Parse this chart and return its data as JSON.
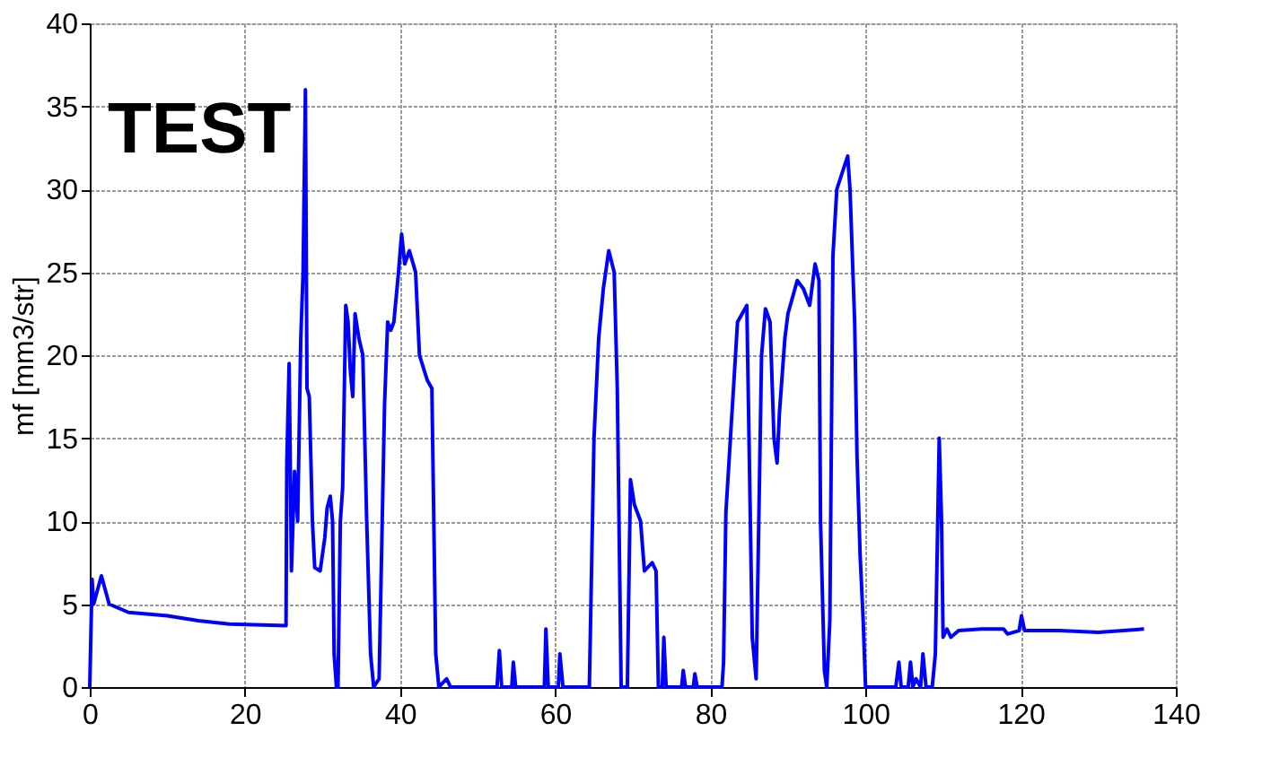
{
  "chart_data": {
    "type": "line",
    "ylabel": "mf [mm3/str]",
    "annotations": [
      "TEST"
    ],
    "xlim": [
      0,
      140
    ],
    "xticks": [
      0,
      20,
      40,
      60,
      80,
      100,
      120,
      140
    ],
    "ylim": [
      0,
      40
    ],
    "yticks": [
      0,
      5,
      10,
      15,
      20,
      25,
      30,
      35,
      40
    ],
    "grid": true,
    "line_style": "solid",
    "marker": "none",
    "series": [
      {
        "color": "#0000ff",
        "x": [
          0,
          0.3,
          0.5,
          1.5,
          2.5,
          5,
          10,
          14,
          18,
          25.3,
          25.4,
          25.7,
          26.0,
          26.4,
          26.8,
          27.2,
          27.5,
          27.8,
          28.0,
          28.3,
          28.7,
          29.0,
          29.7,
          30.3,
          30.6,
          31.0,
          31.3,
          31.5,
          31.8,
          32.0,
          32.3,
          32.6,
          33.0,
          33.3,
          33.6,
          33.9,
          34.2,
          34.7,
          35.2,
          35.7,
          36.2,
          36.6,
          37.3,
          37.7,
          38.0,
          38.4,
          38.8,
          39.2,
          39.8,
          40.2,
          40.6,
          41.2,
          42.0,
          42.5,
          43.5,
          44.1,
          44.6,
          45.0,
          46.0,
          46.5,
          52.5,
          52.8,
          53.1,
          54.4,
          54.6,
          54.9,
          58.6,
          58.8,
          59.1,
          60.4,
          60.6,
          61.0,
          64.4,
          64.6,
          65.0,
          65.6,
          66.2,
          66.9,
          67.6,
          68.0,
          68.5,
          69.3,
          69.7,
          70.2,
          71.0,
          71.5,
          72.5,
          73.0,
          73.3,
          73.8,
          74.0,
          74.3,
          76.3,
          76.5,
          76.8,
          77.8,
          78.0,
          78.3,
          81.5,
          81.7,
          82.0,
          83.5,
          84.7,
          85.4,
          85.9,
          86.6,
          87.1,
          87.7,
          88.2,
          88.6,
          88.9,
          89.6,
          90.0,
          91.2,
          92.0,
          92.8,
          93.5,
          94.0,
          94.2,
          94.7,
          95.0,
          95.4,
          95.8,
          96.3,
          97.0,
          97.7,
          98.0,
          98.6,
          98.9,
          99.3,
          99.7,
          100.0,
          103.9,
          104.3,
          104.6,
          105.5,
          105.8,
          106.1,
          106.5,
          107.1,
          107.4,
          107.8,
          108.6,
          109.0,
          109.5,
          109.8,
          110.0,
          110.5,
          111,
          112,
          115,
          117.8,
          118.3,
          119.8,
          120.1,
          120.5,
          125,
          130,
          135.9
        ],
        "values": [
          0,
          6.5,
          5,
          6.7,
          5,
          4.5,
          4.3,
          4,
          3.8,
          3.7,
          13.5,
          19.5,
          7,
          13,
          10,
          21,
          25,
          36,
          18,
          17.5,
          10,
          7.2,
          7,
          9,
          10.8,
          11.5,
          10,
          2,
          0,
          0,
          10,
          12,
          23,
          22,
          19,
          17.5,
          22.5,
          21,
          20,
          10,
          2,
          0,
          0.5,
          10,
          17,
          22,
          21.5,
          22,
          25,
          27.3,
          25.5,
          26.3,
          25,
          20,
          18.5,
          18,
          2,
          0,
          0.5,
          0,
          0,
          2.2,
          0,
          0,
          1.5,
          0,
          0,
          3.5,
          0,
          0,
          2,
          0,
          0,
          5,
          15,
          21,
          24,
          26.3,
          25,
          18,
          0,
          0,
          12.5,
          11,
          10,
          7,
          7.5,
          7,
          0,
          0,
          3,
          0,
          0,
          1,
          0,
          0,
          0.8,
          0,
          0,
          1.5,
          10.5,
          22,
          23,
          3,
          0.5,
          20,
          22.8,
          22,
          15,
          13.5,
          16.5,
          21,
          22.5,
          24.5,
          24,
          23,
          25.5,
          24.5,
          10,
          1,
          0,
          4,
          26,
          30,
          31,
          32,
          30,
          22,
          14,
          8,
          4,
          0,
          0,
          1.5,
          0,
          0,
          1.5,
          0,
          0.5,
          0,
          2,
          0,
          0,
          2,
          15,
          10,
          3,
          3.5,
          3,
          3.4,
          3.5,
          3.5,
          3.2,
          3.4,
          4.3,
          3.4,
          3.4,
          3.3,
          3.5
        ]
      }
    ]
  }
}
